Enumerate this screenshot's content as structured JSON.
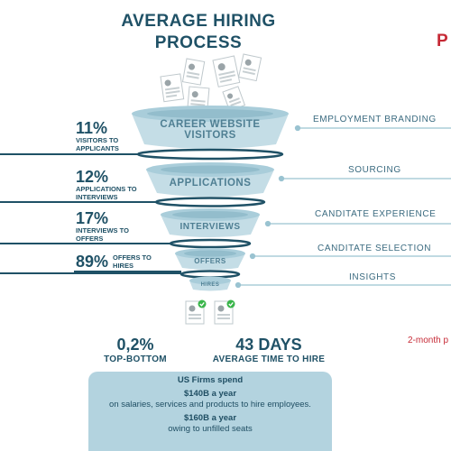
{
  "title_line1": "AVERAGE HIRING",
  "title_line2": "PROCESS",
  "cutoff_heading": "P",
  "stages": [
    {
      "label_line1": "CAREER WEBSITE",
      "label_line2": "VISITORS"
    },
    {
      "label": "APPLICATIONS"
    },
    {
      "label": "INTERVIEWS"
    },
    {
      "label": "OFFERS"
    },
    {
      "label": "HIRES"
    }
  ],
  "conversions": [
    {
      "pct": "11%",
      "line1": "VISITORS TO",
      "line2": "APPLICANTS"
    },
    {
      "pct": "12%",
      "line1": "APPLICATIONS TO",
      "line2": "INTERVIEWS"
    },
    {
      "pct": "17%",
      "line1": "INTERVIEWS TO",
      "line2": "OFFERS"
    },
    {
      "pct": "89%",
      "line1": "OFFERS TO",
      "line2": "HIRES"
    }
  ],
  "side_labels": [
    "EMPLOYMENT BRANDING",
    "SOURCING",
    "CANDITATE EXPERIENCE",
    "CANDITATE SELECTION",
    "INSIGHTS"
  ],
  "stats": {
    "top_bottom_value": "0,2%",
    "top_bottom_label": "TOP-BOTTOM",
    "days_value": "43 DAYS",
    "days_label": "AVERAGE TIME TO HIRE"
  },
  "info": {
    "line1": "US Firms spend",
    "line2": "$140B a year",
    "line3": "on salaries, services and products to hire employees.",
    "line4": "$160B a year",
    "line5": "owing to unfilled seats"
  },
  "cutoff_note": "2-month p",
  "colors": {
    "dark_teal": "#1f5166",
    "funnel_light": "#c4dde6",
    "funnel_mid": "#9cc4d2",
    "line_blue": "#9ac3d1",
    "red": "#c62a36"
  }
}
